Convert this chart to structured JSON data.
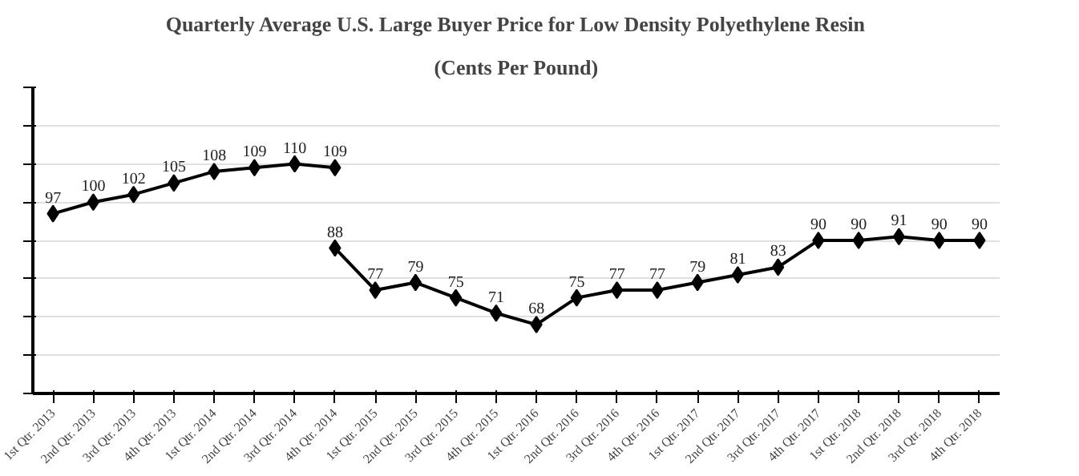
{
  "chart_data": {
    "type": "line",
    "title": "Quarterly Average U.S. Large Buyer Price for Low Density Polyethylene Resin",
    "subtitle": "(Cents Per Pound)",
    "categories": [
      "1st Qtr. 2013",
      "2nd Qtr. 2013",
      "3rd Qtr. 2013",
      "4th Qtr. 2013",
      "1st Qtr. 2014",
      "2nd Qtr. 2014",
      "3rd Qtr. 2014",
      "4th Qtr. 2014",
      "1st Qtr. 2015",
      "2nd Qtr. 2015",
      "3rd Qtr. 2015",
      "4th Qtr. 2015",
      "1st Qtr. 2016",
      "2nd Qtr. 2016",
      "3rd Qtr. 2016",
      "4th Qtr. 2016",
      "1st Qtr. 2017",
      "2nd Qtr. 2017",
      "3rd Qtr. 2017",
      "4th Qtr. 2017",
      "1st Qtr. 2018",
      "2nd Qtr. 2018",
      "3rd Qtr. 2018",
      "4th Qtr. 2018"
    ],
    "series": [
      {
        "color": "#000000",
        "values": [
          97,
          100,
          102,
          105,
          108,
          109,
          110,
          109,
          null,
          null,
          null,
          null,
          null,
          null,
          null,
          null,
          null,
          null,
          null,
          null,
          null,
          null,
          null,
          null
        ]
      },
      {
        "color": "#000000",
        "values": [
          null,
          null,
          null,
          null,
          null,
          null,
          null,
          88,
          77,
          79,
          75,
          71,
          68,
          75,
          77,
          77,
          79,
          81,
          83,
          90,
          90,
          91,
          90,
          90
        ]
      }
    ],
    "ylim": [
      50,
      130
    ],
    "yticks": [
      {
        "value": 50,
        "label": null
      },
      {
        "value": 60,
        "label": null
      },
      {
        "value": 70,
        "label": null
      },
      {
        "value": 80,
        "label": null
      },
      {
        "value": 90,
        "label": null
      },
      {
        "value": 100,
        "label": null
      },
      {
        "value": 110,
        "label": null
      },
      {
        "value": 120,
        "label": null
      },
      {
        "value": 130,
        "label": null
      }
    ],
    "tick_labels": "x",
    "grid": "y",
    "marker": "diamond",
    "line_style": "solid",
    "data_labels": true
  }
}
